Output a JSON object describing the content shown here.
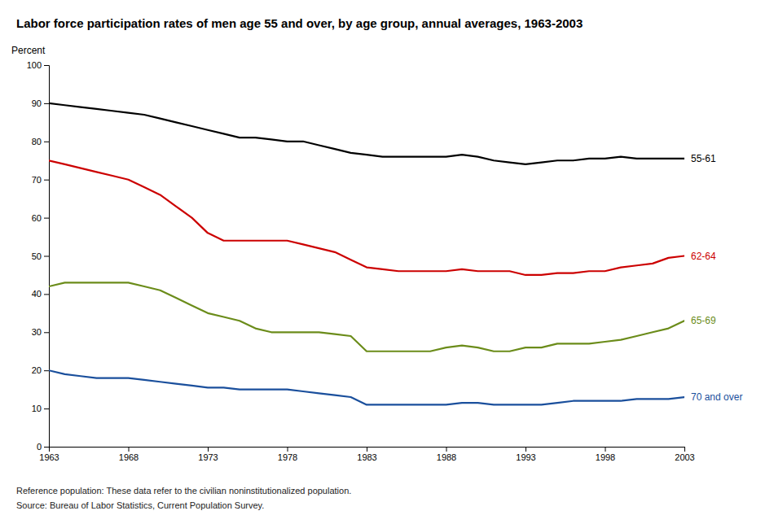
{
  "chart_data": {
    "type": "line",
    "title": "Labor force participation rates of men age 55 and over, by age group, annual averages, 1963-2003",
    "y_label": "Percent",
    "annotations": [
      "Reference population: These data refer to the civilian noninstitutionalized population.",
      "Source:  Bureau of Labor Statistics, Current Population Survey."
    ],
    "x": [
      1963,
      1964,
      1965,
      1966,
      1967,
      1968,
      1969,
      1970,
      1971,
      1972,
      1973,
      1974,
      1975,
      1976,
      1977,
      1978,
      1979,
      1980,
      1981,
      1982,
      1983,
      1984,
      1985,
      1986,
      1987,
      1988,
      1989,
      1990,
      1991,
      1992,
      1993,
      1994,
      1995,
      1996,
      1997,
      1998,
      1999,
      2000,
      2001,
      2002,
      2003
    ],
    "series": [
      {
        "name": "55-61",
        "color": "#000000",
        "values": [
          90,
          89.5,
          89,
          88.5,
          88,
          87.5,
          87,
          86,
          85,
          84,
          83,
          82,
          81,
          81,
          80.5,
          80,
          80,
          79,
          78,
          77,
          76.5,
          76,
          76,
          76,
          76,
          76,
          76.5,
          76,
          75,
          74.5,
          74,
          74.5,
          75,
          75,
          75.5,
          75.5,
          76,
          75.5,
          75.5,
          75.5,
          75.5
        ]
      },
      {
        "name": "62-64",
        "color": "#cc0000",
        "values": [
          75,
          74,
          73,
          72,
          71,
          70,
          68,
          66,
          63,
          60,
          56,
          54,
          54,
          54,
          54,
          54,
          53,
          52,
          51,
          49,
          47,
          46.5,
          46,
          46,
          46,
          46,
          46.5,
          46,
          46,
          46,
          45,
          45,
          45.5,
          45.5,
          46,
          46,
          47,
          47.5,
          48,
          49.5,
          50
        ]
      },
      {
        "name": "65-69",
        "color": "#6b8c1a",
        "values": [
          42,
          43,
          43,
          43,
          43,
          43,
          42,
          41,
          39,
          37,
          35,
          34,
          33,
          31,
          30,
          30,
          30,
          30,
          29.5,
          29,
          25,
          25,
          25,
          25,
          25,
          26,
          26.5,
          26,
          25,
          25,
          26,
          26,
          27,
          27,
          27,
          27.5,
          28,
          29,
          30,
          31,
          33
        ]
      },
      {
        "name": "70 and over",
        "color": "#1a4f9c",
        "values": [
          20,
          19,
          18.5,
          18,
          18,
          18,
          17.5,
          17,
          16.5,
          16,
          15.5,
          15.5,
          15,
          15,
          15,
          15,
          14.5,
          14,
          13.5,
          13,
          11,
          11,
          11,
          11,
          11,
          11,
          11.5,
          11.5,
          11,
          11,
          11,
          11,
          11.5,
          12,
          12,
          12,
          12,
          12.5,
          12.5,
          12.5,
          13
        ]
      }
    ],
    "xlim": [
      1963,
      2003
    ],
    "ylim": [
      0,
      100
    ],
    "xticks": [
      1963,
      1968,
      1973,
      1978,
      1983,
      1988,
      1993,
      1998,
      2003
    ],
    "yticks": [
      0,
      10,
      20,
      30,
      40,
      50,
      60,
      70,
      80,
      90,
      100
    ],
    "grid": false
  }
}
